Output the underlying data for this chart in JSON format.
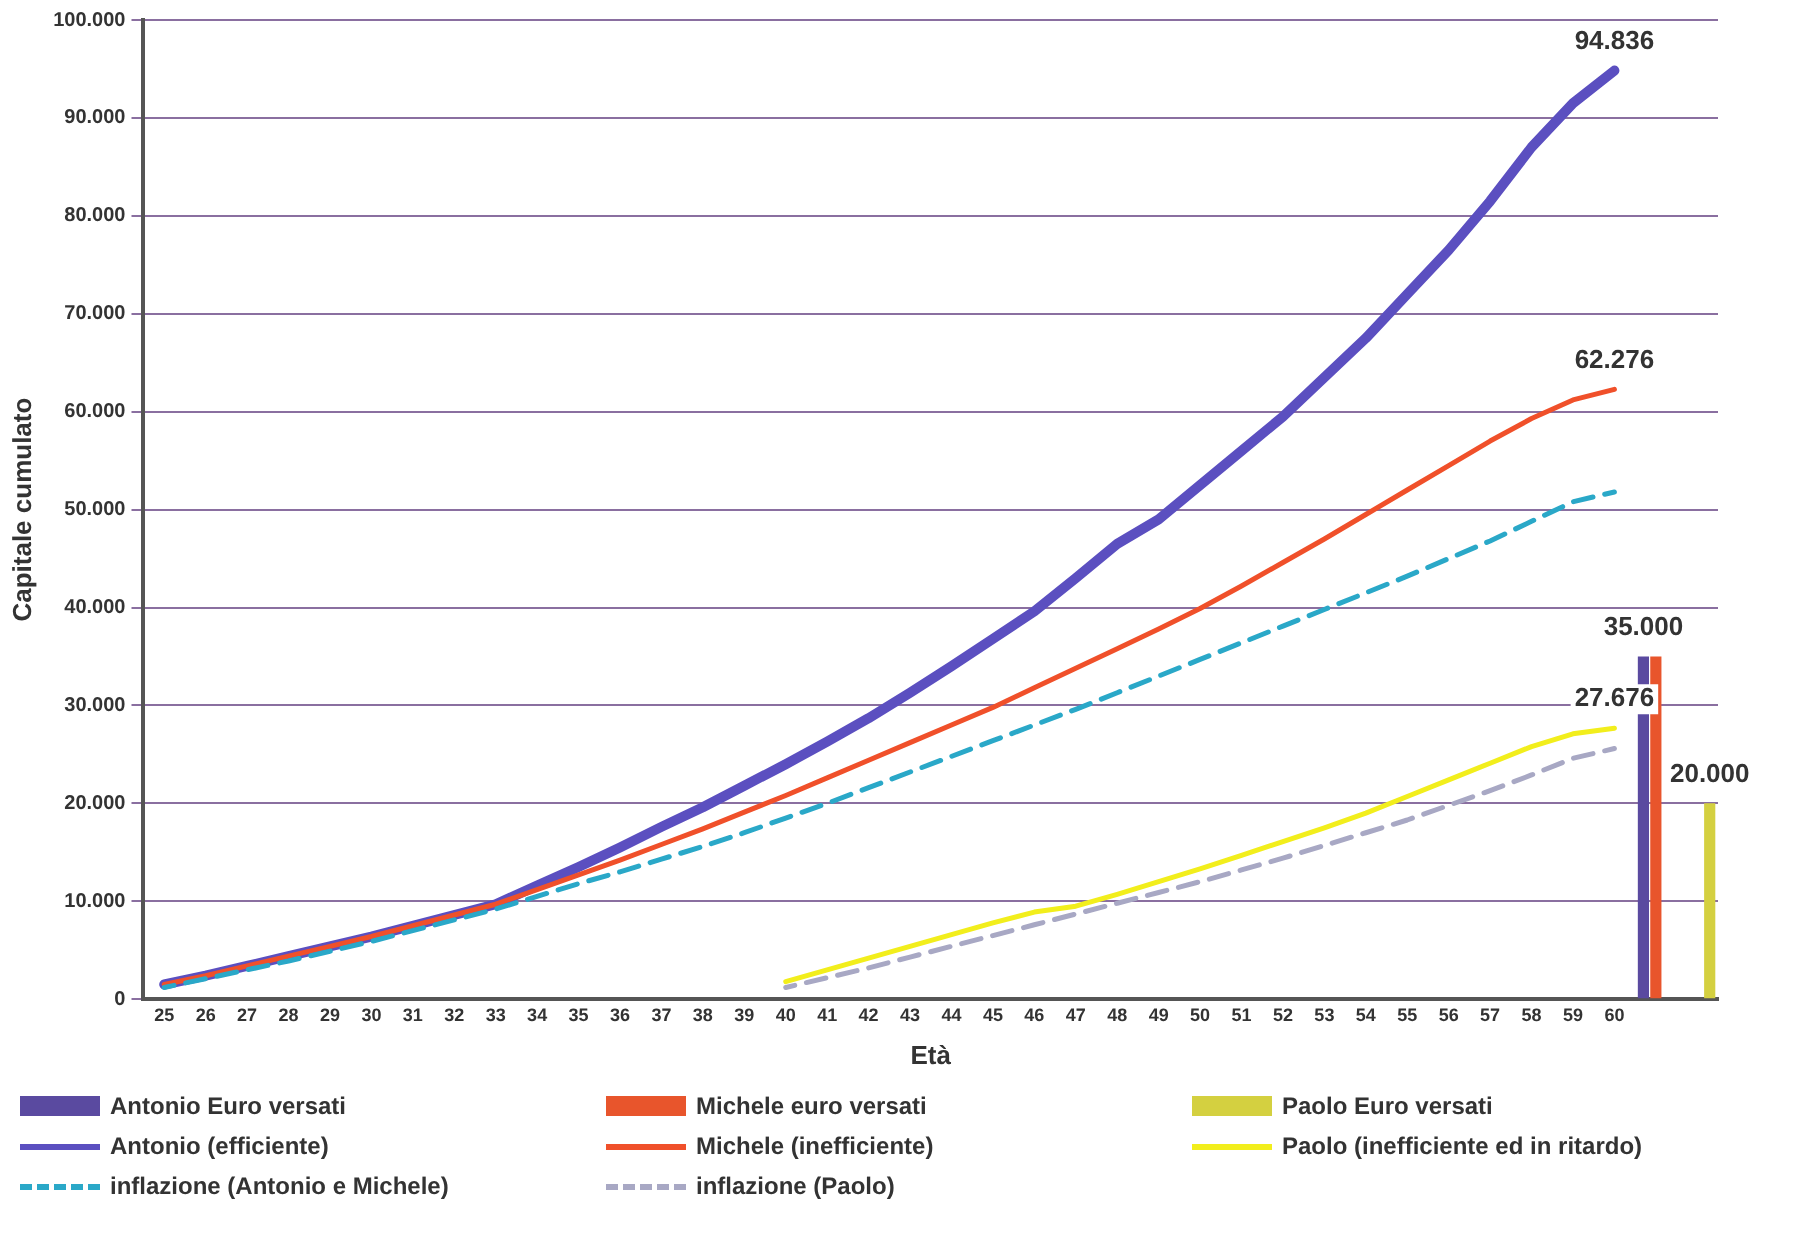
{
  "chart_data": {
    "type": "line",
    "xlabel": "Età",
    "ylabel": "Capitale cumulato",
    "categories": [
      "25",
      "26",
      "27",
      "28",
      "29",
      "30",
      "31",
      "32",
      "33",
      "34",
      "35",
      "36",
      "37",
      "38",
      "39",
      "40",
      "41",
      "42",
      "43",
      "44",
      "45",
      "46",
      "47",
      "48",
      "49",
      "50",
      "51",
      "52",
      "53",
      "54",
      "55",
      "56",
      "57",
      "58",
      "59",
      "60",
      null,
      null
    ],
    "ylim": [
      0,
      100000
    ],
    "yticks": [
      0,
      {
        "value": 10000,
        "label": "10.000"
      },
      {
        "value": 20000,
        "label": "20.000"
      },
      {
        "value": 30000,
        "label": "30.000"
      },
      {
        "value": 40000,
        "label": "40.000"
      },
      {
        "value": 50000,
        "label": "50.000"
      },
      {
        "value": 60000,
        "label": "60.000"
      },
      {
        "value": 70000,
        "label": "70.000"
      },
      {
        "value": 80000,
        "label": "80.000"
      },
      {
        "value": 90000,
        "label": "90.000"
      },
      {
        "value": 100000,
        "label": "100.000"
      }
    ],
    "grid": "y",
    "legend": "bottom",
    "marker": "none",
    "series": [
      {
        "name": "Antonio Euro versati",
        "type": "bar",
        "color": "#5a4aa0",
        "values": [
          null,
          null,
          null,
          null,
          null,
          null,
          null,
          null,
          null,
          null,
          null,
          null,
          null,
          null,
          null,
          null,
          null,
          null,
          null,
          null,
          null,
          null,
          null,
          null,
          null,
          null,
          null,
          null,
          null,
          null,
          null,
          null,
          null,
          null,
          null,
          null,
          35000,
          null
        ],
        "value_labels": [
          null,
          null,
          null,
          null,
          null,
          null,
          null,
          null,
          null,
          null,
          null,
          null,
          null,
          null,
          null,
          null,
          null,
          null,
          null,
          null,
          null,
          null,
          null,
          null,
          null,
          null,
          null,
          null,
          null,
          null,
          null,
          null,
          null,
          null,
          null,
          null,
          "35.000",
          null
        ]
      },
      {
        "name": "Michele euro versati",
        "type": "bar",
        "color": "#e8552c",
        "values": [
          null,
          null,
          null,
          null,
          null,
          null,
          null,
          null,
          null,
          null,
          null,
          null,
          null,
          null,
          null,
          null,
          null,
          null,
          null,
          null,
          null,
          null,
          null,
          null,
          null,
          null,
          null,
          null,
          null,
          null,
          null,
          null,
          null,
          null,
          null,
          null,
          35000,
          null
        ]
      },
      {
        "name": "Paolo Euro versati",
        "type": "bar",
        "color": "#d4d040",
        "values": [
          null,
          null,
          null,
          null,
          null,
          null,
          null,
          null,
          null,
          null,
          null,
          null,
          null,
          null,
          null,
          null,
          null,
          null,
          null,
          null,
          null,
          null,
          null,
          null,
          null,
          null,
          null,
          null,
          null,
          null,
          null,
          null,
          null,
          null,
          null,
          null,
          null,
          20000
        ],
        "value_labels": [
          null,
          null,
          null,
          null,
          null,
          null,
          null,
          null,
          null,
          null,
          null,
          null,
          null,
          null,
          null,
          null,
          null,
          null,
          null,
          null,
          null,
          null,
          null,
          null,
          null,
          null,
          null,
          null,
          null,
          null,
          null,
          null,
          null,
          null,
          null,
          null,
          null,
          "20.000"
        ]
      },
      {
        "name": "Antonio (efficiente)",
        "type": "line",
        "line_style": "solid",
        "color": "#5b4fc0",
        "values": [
          1500,
          2400,
          3400,
          4400,
          5400,
          6400,
          7500,
          8600,
          9700,
          11600,
          13500,
          15500,
          17600,
          19600,
          21800,
          24000,
          26300,
          28700,
          31300,
          34000,
          36800,
          39600,
          43000,
          46500,
          49000,
          52500,
          56000,
          59500,
          63500,
          67500,
          72000,
          76500,
          81500,
          87000,
          91500,
          94836,
          null,
          null
        ],
        "value_labels": [
          null,
          null,
          null,
          null,
          null,
          null,
          null,
          null,
          null,
          null,
          null,
          null,
          null,
          null,
          null,
          null,
          null,
          null,
          null,
          null,
          null,
          null,
          null,
          null,
          null,
          null,
          null,
          null,
          null,
          null,
          null,
          null,
          null,
          null,
          null,
          "94.836",
          null,
          null
        ]
      },
      {
        "name": "Michele (inefficiente)",
        "type": "line",
        "line_style": "solid",
        "color": "#f0502a",
        "values": [
          1500,
          2400,
          3400,
          4400,
          5400,
          6400,
          7500,
          8600,
          9700,
          11200,
          12700,
          14200,
          15800,
          17400,
          19100,
          20800,
          22600,
          24400,
          26200,
          28000,
          29800,
          31800,
          33800,
          35800,
          37800,
          39900,
          42200,
          44600,
          47000,
          49500,
          52000,
          54500,
          57000,
          59300,
          61200,
          62276,
          null,
          null
        ],
        "value_labels": [
          null,
          null,
          null,
          null,
          null,
          null,
          null,
          null,
          null,
          null,
          null,
          null,
          null,
          null,
          null,
          null,
          null,
          null,
          null,
          null,
          null,
          null,
          null,
          null,
          null,
          null,
          null,
          null,
          null,
          null,
          null,
          null,
          null,
          null,
          null,
          "62.276",
          null,
          null
        ]
      },
      {
        "name": "Paolo (inefficiente ed in ritardo)",
        "type": "line",
        "line_style": "solid",
        "color": "#f2ee1c",
        "values": [
          null,
          null,
          null,
          null,
          null,
          null,
          null,
          null,
          null,
          null,
          null,
          null,
          null,
          null,
          null,
          1800,
          3000,
          4200,
          5400,
          6600,
          7800,
          8900,
          9500,
          10700,
          12000,
          13300,
          14700,
          16100,
          17500,
          19000,
          20700,
          22400,
          24100,
          25800,
          27100,
          27676,
          null,
          null
        ],
        "value_labels": [
          null,
          null,
          null,
          null,
          null,
          null,
          null,
          null,
          null,
          null,
          null,
          null,
          null,
          null,
          null,
          null,
          null,
          null,
          null,
          null,
          null,
          null,
          null,
          null,
          null,
          null,
          null,
          null,
          null,
          null,
          null,
          null,
          null,
          null,
          null,
          "27.676",
          null,
          null
        ]
      },
      {
        "name": "inflazione (Antonio e Michele)",
        "type": "line",
        "line_style": "dashed",
        "color": "#2aa8c8",
        "values": [
          1200,
          2100,
          3000,
          3900,
          4900,
          5900,
          7000,
          8100,
          9200,
          10500,
          11800,
          13000,
          14300,
          15600,
          17000,
          18500,
          20000,
          21600,
          23200,
          24800,
          26400,
          28000,
          29600,
          31300,
          33000,
          34700,
          36400,
          38100,
          39800,
          41500,
          43200,
          45000,
          46800,
          48800,
          50800,
          51800,
          null,
          null
        ]
      },
      {
        "name": "inflazione (Paolo)",
        "type": "line",
        "line_style": "dashed",
        "color": "#a8a8c4",
        "values": [
          null,
          null,
          null,
          null,
          null,
          null,
          null,
          null,
          null,
          null,
          null,
          null,
          null,
          null,
          null,
          1200,
          2200,
          3200,
          4300,
          5400,
          6500,
          7600,
          8700,
          9800,
          10900,
          12000,
          13200,
          14400,
          15700,
          17000,
          18300,
          19800,
          21300,
          22900,
          24600,
          25600,
          null,
          null
        ]
      }
    ]
  }
}
